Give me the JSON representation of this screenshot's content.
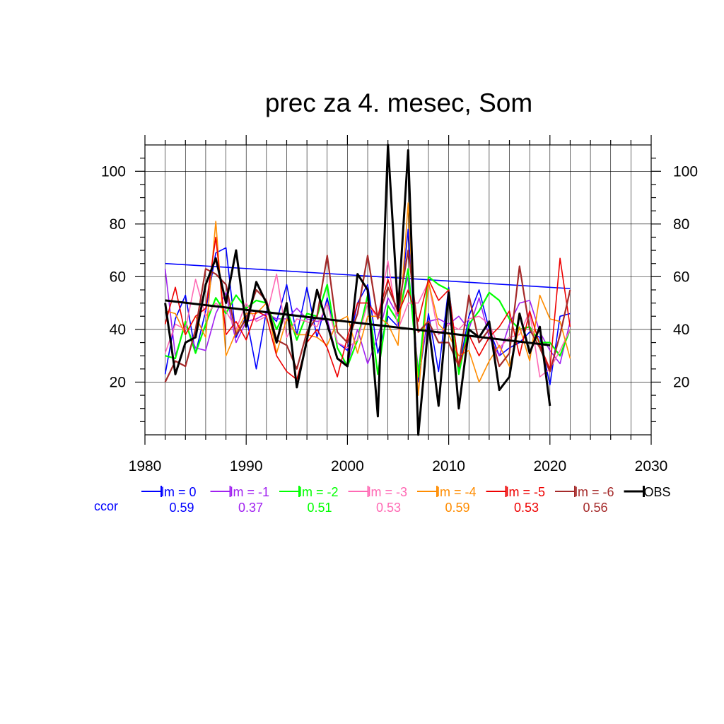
{
  "chart_data": {
    "type": "line",
    "title": "prec za 4. mesec, Som",
    "xlabel": "",
    "ylabel": "",
    "xlim": [
      1980,
      2030
    ],
    "ylim": [
      0,
      110
    ],
    "x_ticks": [
      1980,
      1990,
      2000,
      2010,
      2020,
      2030
    ],
    "y_ticks": [
      20,
      40,
      60,
      80,
      100
    ],
    "grid": true,
    "ccor_label": "ccor",
    "ccor_color": "#0000ff",
    "years_models": [
      1982,
      1983,
      1984,
      1985,
      1986,
      1987,
      1988,
      1989,
      1990,
      1991,
      1992,
      1993,
      1994,
      1995,
      1996,
      1997,
      1998,
      1999,
      2000,
      2001,
      2002,
      2003,
      2004,
      2005,
      2006,
      2007,
      2008,
      2009,
      2010,
      2011,
      2012,
      2013,
      2014,
      2015,
      2016,
      2017,
      2018,
      2019,
      2020,
      2021,
      2022
    ],
    "years_obs": [
      1982,
      1983,
      1984,
      1985,
      1986,
      1987,
      1988,
      1989,
      1990,
      1991,
      1992,
      1993,
      1994,
      1995,
      1996,
      1997,
      1998,
      1999,
      2000,
      2001,
      2002,
      2003,
      2004,
      2005,
      2006,
      2007,
      2008,
      2009,
      2010,
      2011,
      2012,
      2013,
      2014,
      2015,
      2016,
      2017,
      2018,
      2019,
      2020
    ],
    "series": [
      {
        "name": "lm = 0",
        "ccor": "0.59",
        "color": "#0000ff",
        "width": 1.6,
        "values": [
          23,
          44,
          53,
          31,
          47,
          69,
          71,
          37,
          45,
          25,
          47,
          43,
          57,
          38,
          56,
          37,
          52,
          35,
          32,
          50,
          57,
          31,
          45,
          41,
          78,
          20,
          46,
          24,
          56,
          25,
          45,
          55,
          40,
          30,
          33,
          35,
          39,
          37,
          19,
          45,
          46
        ],
        "trend": [
          65,
          55.5
        ]
      },
      {
        "name": "lm = -1",
        "ccor": "0.37",
        "color": "#a020f0",
        "width": 1.6,
        "values": [
          63,
          30,
          42,
          33,
          32,
          46,
          54,
          35,
          43,
          44,
          46,
          44,
          44,
          48,
          44,
          43,
          44,
          29,
          27,
          40,
          27,
          37,
          52,
          45,
          60,
          25,
          43,
          44,
          42,
          45,
          40,
          52,
          37,
          30,
          42,
          50,
          51,
          39,
          32,
          27,
          43
        ]
      },
      {
        "name": "lm = -2",
        "ccor": "0.51",
        "color": "#00ff00",
        "width": 2.2,
        "values": [
          30,
          29,
          43,
          31,
          42,
          52,
          46,
          53,
          48,
          51,
          50,
          40,
          48,
          36,
          46,
          45,
          57,
          33,
          26,
          36,
          53,
          23,
          49,
          43,
          63,
          22,
          60,
          57,
          55,
          23,
          42,
          47,
          54,
          51,
          44,
          40,
          41,
          35,
          35,
          30,
          40
        ]
      },
      {
        "name": "lm = -3",
        "ccor": "0.53",
        "color": "#ff69b4",
        "width": 1.6,
        "values": [
          31,
          42,
          40,
          59,
          45,
          50,
          47,
          40,
          50,
          43,
          45,
          61,
          37,
          44,
          43,
          41,
          50,
          35,
          33,
          36,
          50,
          44,
          66,
          40,
          50,
          50,
          58,
          38,
          42,
          40,
          44,
          45,
          42,
          33,
          37,
          38,
          47,
          22,
          25,
          32,
          40
        ]
      },
      {
        "name": "lm = -4",
        "ccor": "0.59",
        "color": "#ff8c00",
        "width": 1.6,
        "values": [
          47,
          46,
          38,
          45,
          37,
          81,
          30,
          39,
          46,
          46,
          50,
          31,
          44,
          38,
          38,
          37,
          34,
          43,
          45,
          31,
          45,
          45,
          42,
          34,
          88,
          15,
          58,
          42,
          38,
          30,
          32,
          20,
          28,
          34,
          26,
          41,
          28,
          53,
          44,
          43,
          29
        ]
      },
      {
        "name": "lm = -5",
        "ccor": "0.53",
        "color": "#ee0000",
        "width": 1.6,
        "values": [
          42,
          56,
          38,
          45,
          48,
          75,
          38,
          43,
          36,
          47,
          45,
          30,
          24,
          21,
          35,
          40,
          33,
          22,
          37,
          50,
          50,
          45,
          59,
          46,
          55,
          43,
          59,
          51,
          55,
          26,
          38,
          30,
          37,
          41,
          47,
          30,
          47,
          34,
          25,
          67,
          41
        ]
      },
      {
        "name": "lm = -6",
        "ccor": "0.56",
        "color": "#a52a2a",
        "width": 2.2,
        "values": [
          20,
          28,
          26,
          40,
          63,
          61,
          57,
          38,
          44,
          55,
          51,
          36,
          34,
          25,
          39,
          45,
          68,
          39,
          35,
          46,
          68,
          44,
          56,
          47,
          70,
          39,
          43,
          35,
          35,
          26,
          53,
          35,
          40,
          26,
          31,
          64,
          40,
          33,
          24,
          38,
          55
        ]
      },
      {
        "name": "OBS",
        "ccor": "",
        "color": "#000000",
        "width": 3,
        "obs": true,
        "values": [
          50,
          23,
          35,
          37,
          57,
          67,
          50,
          70,
          41,
          58,
          50,
          35,
          50,
          18,
          36,
          55,
          42,
          29,
          26,
          61,
          55,
          7,
          110,
          47,
          108,
          0,
          42,
          11,
          54,
          10,
          40,
          37,
          43,
          17,
          22,
          46,
          31,
          41,
          11
        ],
        "trend": [
          51,
          34
        ]
      }
    ]
  }
}
